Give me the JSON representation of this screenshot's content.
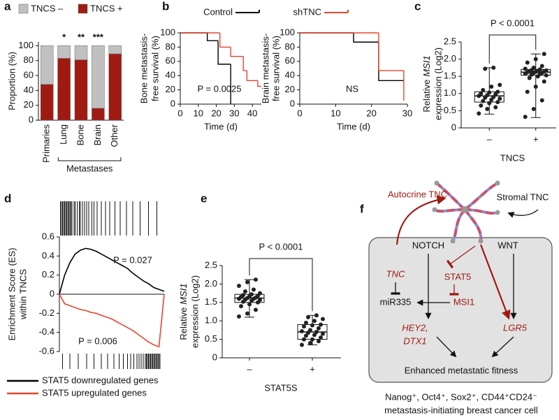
{
  "panel_labels": [
    "a",
    "b",
    "c",
    "d",
    "e",
    "f"
  ],
  "chart_data": [
    {
      "type": "bar",
      "stacked": true,
      "ylabel": "Proportion (%)",
      "categories": [
        "Primaries",
        "Lung",
        "Bone",
        "Brain",
        "Other"
      ],
      "series": [
        {
          "name": "TNCS –",
          "color": "#c0c0c0",
          "values": [
            52,
            17,
            19,
            84,
            11
          ]
        },
        {
          "name": "TNCS +",
          "color": "#a01a12",
          "values": [
            48,
            83,
            81,
            16,
            89
          ]
        }
      ],
      "annotations": [
        null,
        "*",
        "**",
        "***",
        null
      ],
      "group_label": "Metastases",
      "ylim": [
        0,
        105
      ],
      "yticks": [
        0,
        20,
        40,
        60,
        80,
        100
      ]
    },
    {
      "type": "step",
      "xlabel": "Time (d)",
      "ylabel": [
        "Bone metastasis-",
        "free survival (%)"
      ],
      "annotation": "P = 0.0025",
      "series": [
        {
          "name": "Control",
          "color": "#000000",
          "x": [
            0,
            15,
            21,
            28
          ],
          "values": [
            100,
            89,
            56,
            0
          ]
        },
        {
          "name": "shTNC",
          "color": "#e8452c",
          "x": [
            0,
            22,
            28,
            35,
            37,
            43,
            45
          ],
          "values": [
            100,
            80,
            67,
            47,
            33,
            25,
            25
          ]
        }
      ],
      "xlim": [
        0,
        45
      ],
      "xticks": [
        0,
        10,
        20,
        30,
        40
      ],
      "ylim": [
        0,
        100
      ],
      "yticks": [
        0,
        20,
        40,
        60,
        80,
        100
      ]
    },
    {
      "type": "step",
      "xlabel": "Time (d)",
      "ylabel": [
        "Brain metastasis-",
        "free survival (%)"
      ],
      "annotation": "NS",
      "series": [
        {
          "color": "#000000",
          "x": [
            0,
            15,
            22,
            29
          ],
          "values": [
            100,
            87,
            33,
            33
          ]
        },
        {
          "color": "#e8452c",
          "x": [
            0,
            22,
            29,
            29
          ],
          "values": [
            100,
            47,
            47,
            5
          ]
        }
      ],
      "xlim": [
        0,
        30
      ],
      "xticks": [
        0,
        10,
        20,
        30
      ],
      "ylim": [
        0,
        100
      ],
      "yticks": [
        0,
        20,
        40,
        60,
        80,
        100
      ]
    },
    {
      "type": "box",
      "xlabel": "TNCS",
      "ylabel": [
        "Relative",
        "MSI1",
        "expression (Log2)"
      ],
      "annotation": "P < 0.0001",
      "categories": [
        "–",
        "+"
      ],
      "boxes": [
        {
          "min": 0.4,
          "q1": 0.75,
          "median": 0.93,
          "q3": 1.05,
          "max": 1.75,
          "points": [
            0.42,
            0.55,
            0.6,
            0.65,
            0.72,
            0.75,
            0.78,
            0.82,
            0.85,
            0.88,
            0.9,
            0.93,
            0.95,
            0.98,
            1.0,
            1.03,
            1.05,
            1.1,
            1.2,
            1.25,
            1.72,
            1.75
          ]
        },
        {
          "min": 0.3,
          "q1": 1.53,
          "median": 1.62,
          "q3": 1.7,
          "max": 2.15,
          "points": [
            0.32,
            0.55,
            0.8,
            1.05,
            1.2,
            1.35,
            1.45,
            1.5,
            1.53,
            1.55,
            1.57,
            1.58,
            1.6,
            1.6,
            1.62,
            1.63,
            1.64,
            1.65,
            1.66,
            1.67,
            1.68,
            1.7,
            1.72,
            1.75,
            1.8,
            1.9,
            2.0,
            2.15
          ]
        }
      ],
      "ylim": [
        0,
        2.5
      ],
      "yticks": [
        0,
        0.5,
        {
          "value": 1,
          "label": "1.0"
        },
        1.5,
        {
          "value": 2,
          "label": "2.0"
        },
        2.5
      ]
    },
    {
      "type": "line",
      "ylabel": [
        "Enrichment Score (ES)",
        "within TNCS"
      ],
      "x": [
        0,
        5,
        10,
        15,
        20,
        25,
        30,
        35,
        40,
        45,
        50,
        55,
        60,
        65,
        70,
        75,
        80,
        85,
        90,
        95,
        100
      ],
      "series": [
        {
          "name": "STAT5 downregulated genes",
          "color": "#000000",
          "annotation": "P = 0.027",
          "values": [
            0,
            0.2,
            0.33,
            0.42,
            0.46,
            0.48,
            0.47,
            0.45,
            0.42,
            0.39,
            0.36,
            0.33,
            0.3,
            0.27,
            0.22,
            0.18,
            0.14,
            0.11,
            0.07,
            0.05,
            0.03
          ],
          "hits": [
            1,
            2,
            3,
            4,
            5,
            6,
            7,
            8,
            9,
            10,
            11,
            12,
            14,
            15,
            17,
            19,
            20,
            22,
            24,
            26,
            28,
            31,
            33,
            36,
            40,
            44,
            48,
            53,
            58,
            64,
            70,
            77,
            85,
            93
          ]
        },
        {
          "name": "STAT5 upregulated genes",
          "color": "#e8452c",
          "annotation": "P = 0.006",
          "values": [
            0,
            -0.1,
            -0.12,
            -0.14,
            -0.16,
            -0.17,
            -0.19,
            -0.2,
            -0.22,
            -0.24,
            -0.26,
            -0.29,
            -0.32,
            -0.35,
            -0.38,
            -0.42,
            -0.46,
            -0.5,
            -0.53,
            -0.55,
            0
          ],
          "hits": [
            3,
            10,
            18,
            26,
            33,
            40,
            46,
            52,
            57,
            61,
            65,
            68,
            71,
            74,
            76,
            78,
            80,
            82,
            83,
            84,
            85,
            86,
            87,
            88,
            89,
            90,
            91,
            92,
            93,
            94,
            95,
            96
          ]
        }
      ],
      "xlim": [
        0,
        100
      ],
      "ylim": [
        -0.6,
        0.6
      ],
      "yticks": [
        -0.6,
        -0.4,
        -0.2,
        0,
        0.2,
        0.4,
        0.6
      ]
    },
    {
      "type": "box",
      "xlabel": "STAT5S",
      "ylabel": [
        "Relative",
        "MSI1",
        "expression (Log2)"
      ],
      "annotation": "P < 0.0001",
      "categories": [
        "–",
        "+"
      ],
      "boxes": [
        {
          "min": 1.1,
          "q1": 1.5,
          "median": 1.62,
          "q3": 1.72,
          "max": 2.12,
          "points": [
            1.12,
            1.2,
            1.3,
            1.4,
            1.45,
            1.5,
            1.52,
            1.55,
            1.57,
            1.58,
            1.6,
            1.6,
            1.62,
            1.63,
            1.65,
            1.66,
            1.68,
            1.7,
            1.72,
            1.75,
            1.8,
            1.85,
            1.95,
            2.05,
            2.12
          ]
        },
        {
          "min": 0.35,
          "q1": 0.5,
          "median": 0.7,
          "q3": 0.9,
          "max": 1.15,
          "points": [
            0.35,
            0.4,
            0.45,
            0.5,
            0.5,
            0.55,
            0.6,
            0.62,
            0.65,
            0.68,
            0.7,
            0.72,
            0.75,
            0.8,
            0.85,
            0.88,
            0.9,
            0.95,
            1.0,
            1.05,
            1.1,
            1.15
          ]
        }
      ],
      "ylim": [
        0,
        2.5
      ],
      "yticks": [
        0,
        0.5,
        {
          "value": 1,
          "label": "1.0"
        },
        1.5,
        {
          "value": 2,
          "label": "2.0"
        },
        2.5
      ]
    }
  ],
  "diagram": {
    "autocrine": "Autocrine TNC",
    "stromal": "Stromal TNC",
    "notch": "NOTCH",
    "wnt": "WNT",
    "tnc": "TNC",
    "stat5": "STAT5",
    "mir335": "miR335",
    "msi1": "MSI1",
    "hey2": "HEY2,",
    "dtx1": "DTX1",
    "lgr5": "LGR5",
    "outcome": "Enhanced metastatic fitness",
    "cell": [
      "Nanog⁺, Oct4⁺, Sox2⁺, CD44⁺CD24⁻",
      "metastasis-initiating breast cancer cell"
    ]
  }
}
